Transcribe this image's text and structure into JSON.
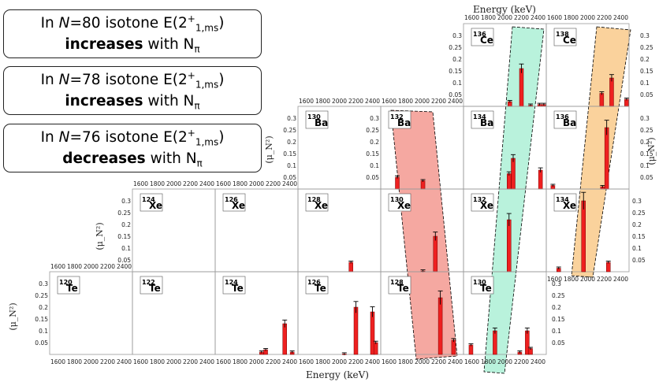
{
  "chart_data": {
    "type": "bar",
    "xlabel": "Energy (keV)",
    "ylabel": "(μ_N²)",
    "xlim": [
      1500,
      2500
    ],
    "ylim": [
      0,
      0.35
    ],
    "x_ticks": [
      1600,
      1800,
      2000,
      2200,
      2400
    ],
    "y_ticks": [
      0.05,
      0.1,
      0.15,
      0.2,
      0.25,
      0.3
    ],
    "error_bars": true,
    "panels": [
      {
        "nucleus": "136Ce",
        "mass": "136",
        "element": "Ce",
        "points": [
          [
            2060,
            0.02
          ],
          [
            2200,
            0.16
          ],
          [
            2310,
            0.005
          ],
          [
            2420,
            0.008
          ],
          [
            2470,
            0.008
          ]
        ]
      },
      {
        "nucleus": "138Ce",
        "mass": "138",
        "element": "Ce",
        "points": [
          [
            2170,
            0.055
          ],
          [
            2290,
            0.12
          ],
          [
            2470,
            0.03
          ]
        ]
      },
      {
        "nucleus": "130Ba",
        "mass": "130",
        "element": "Ba",
        "points": []
      },
      {
        "nucleus": "132Ba",
        "mass": "132",
        "element": "Ba",
        "points": [
          [
            1700,
            0.05
          ],
          [
            2010,
            0.035
          ]
        ]
      },
      {
        "nucleus": "134Ba",
        "mass": "134",
        "element": "Ba",
        "points": [
          [
            2050,
            0.065
          ],
          [
            2100,
            0.13
          ],
          [
            2430,
            0.08
          ]
        ]
      },
      {
        "nucleus": "136Ba",
        "mass": "136",
        "element": "Ba",
        "points": [
          [
            1580,
            0.015
          ],
          [
            2180,
            0.01
          ],
          [
            2230,
            0.26
          ]
        ]
      },
      {
        "nucleus": "124Xe",
        "mass": "124",
        "element": "Xe",
        "points": []
      },
      {
        "nucleus": "126Xe",
        "mass": "126",
        "element": "Xe",
        "points": []
      },
      {
        "nucleus": "128Xe",
        "mass": "128",
        "element": "Xe",
        "points": [
          [
            2140,
            0.04
          ]
        ]
      },
      {
        "nucleus": "130Xe",
        "mass": "130",
        "element": "Xe",
        "points": [
          [
            2010,
            0.003
          ],
          [
            2160,
            0.15
          ]
        ]
      },
      {
        "nucleus": "132Xe",
        "mass": "132",
        "element": "Xe",
        "points": [
          [
            2050,
            0.22
          ]
        ]
      },
      {
        "nucleus": "134Xe",
        "mass": "134",
        "element": "Xe",
        "points": [
          [
            1650,
            0.015
          ],
          [
            1950,
            0.3
          ],
          [
            2250,
            0.04
          ]
        ]
      },
      {
        "nucleus": "120Te",
        "mass": "120",
        "element": "Te",
        "points": []
      },
      {
        "nucleus": "122Te",
        "mass": "122",
        "element": "Te",
        "points": []
      },
      {
        "nucleus": "124Te",
        "mass": "124",
        "element": "Te",
        "points": [
          [
            2060,
            0.01
          ],
          [
            2110,
            0.02
          ],
          [
            2340,
            0.13
          ],
          [
            2430,
            0.01
          ]
        ]
      },
      {
        "nucleus": "126Te",
        "mass": "126",
        "element": "Te",
        "points": [
          [
            2060,
            0.002
          ],
          [
            2200,
            0.2
          ],
          [
            2400,
            0.18
          ],
          [
            2440,
            0.05
          ]
        ]
      },
      {
        "nucleus": "128Te",
        "mass": "128",
        "element": "Te",
        "points": [
          [
            2220,
            0.24
          ],
          [
            2380,
            0.06
          ]
        ]
      },
      {
        "nucleus": "130Te",
        "mass": "130",
        "element": "Te",
        "points": [
          [
            1590,
            0.04
          ],
          [
            1880,
            0.1
          ],
          [
            2180,
            0.01
          ],
          [
            2270,
            0.1
          ],
          [
            2310,
            0.025
          ]
        ]
      }
    ]
  },
  "callouts": [
    {
      "line1_pre": "In ",
      "N": "N",
      "line1_mid": "=80 isotone E(2",
      "sup": "+",
      "sub": "1,ms",
      "line1_post": ")",
      "strong": "increases",
      "with": " with N",
      "pi": "π",
      "color": "#f8c98a"
    },
    {
      "line1_pre": "In ",
      "N": "N",
      "line1_mid": "=78 isotone E(2",
      "sup": "+",
      "sub": "1,ms",
      "line1_post": ")",
      "strong": "increases",
      "with": " with N",
      "pi": "π",
      "color": "#aaf2d6"
    },
    {
      "line1_pre": "In ",
      "N": "N",
      "line1_mid": "=76 isotone E(2",
      "sup": "+",
      "sub": "1,ms",
      "line1_post": ")",
      "strong": "decreases",
      "with": " with N",
      "pi": "π",
      "color": "#f7a9a2"
    }
  ],
  "colors": {
    "bar": "#ee2020",
    "isotone_80": "#f7b45a",
    "isotone_78": "#7fe8c0",
    "isotone_76": "#ee6e63"
  }
}
